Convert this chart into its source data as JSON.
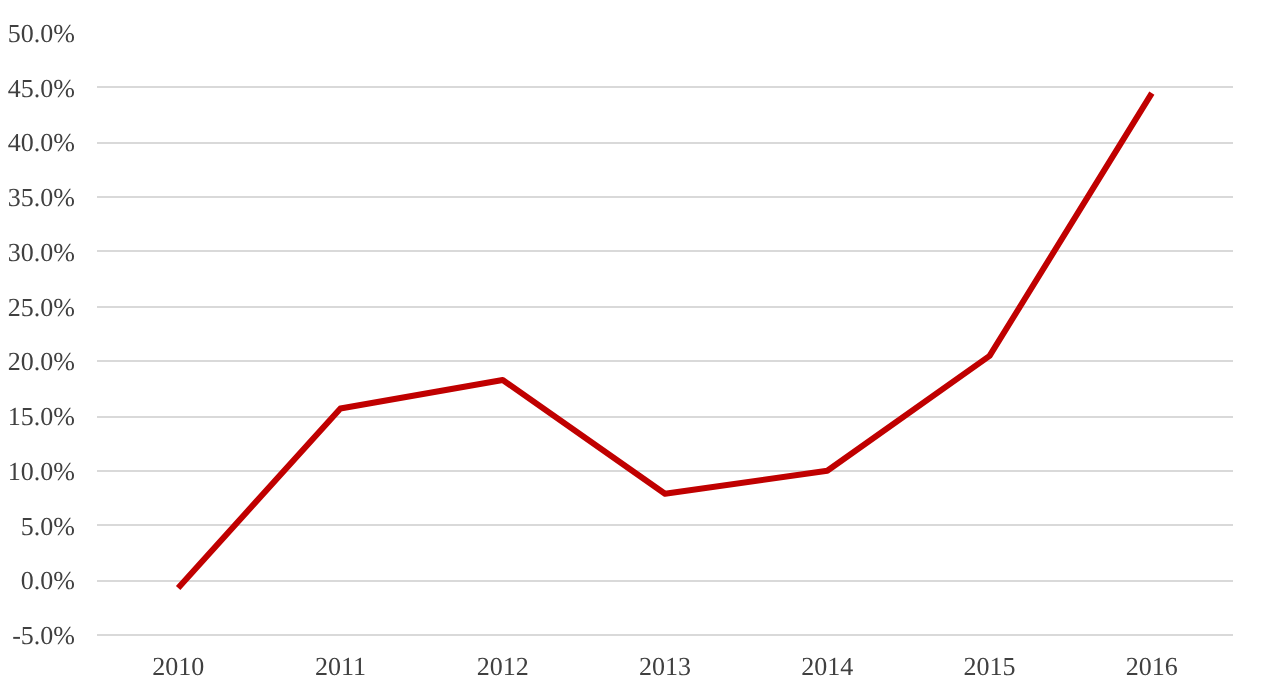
{
  "chart_data": {
    "type": "line",
    "categories": [
      "2010",
      "2011",
      "2012",
      "2013",
      "2014",
      "2015",
      "2016"
    ],
    "series": [
      {
        "color": "#c00000",
        "values": [
          -0.7,
          15.7,
          18.3,
          7.9,
          10.0,
          20.5,
          44.5
        ]
      }
    ],
    "ylim": [
      -5,
      50
    ],
    "yticks": [
      {
        "value": -5,
        "label": "-5.0%"
      },
      {
        "value": 0,
        "label": "0.0%"
      },
      {
        "value": 5,
        "label": "5.0%"
      },
      {
        "value": 10,
        "label": "10.0%"
      },
      {
        "value": 15,
        "label": "15.0%"
      },
      {
        "value": 20,
        "label": "20.0%"
      },
      {
        "value": 25,
        "label": "25.0%"
      },
      {
        "value": 30,
        "label": "30.0%"
      },
      {
        "value": 35,
        "label": "35.0%"
      },
      {
        "value": 40,
        "label": "40.0%"
      },
      {
        "value": 45,
        "label": "45.0%"
      },
      {
        "value": 50,
        "label": "50.0%"
      }
    ],
    "grid": "y",
    "marker": "none",
    "line_style": "solid"
  }
}
